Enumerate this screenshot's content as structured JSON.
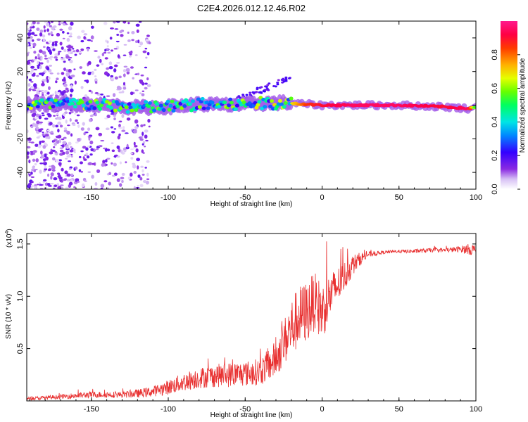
{
  "chart_data": [
    {
      "type": "heatmap",
      "title": "C2E4.2026.012.12.46.R02",
      "xlabel": "Height of straight line (km)",
      "ylabel": "Frequency (Hz)",
      "xlim": [
        -192,
        100
      ],
      "ylim": [
        -50,
        50
      ],
      "xticks": [
        -150,
        -100,
        -50,
        0,
        50,
        100
      ],
      "yticks": [
        -40,
        -20,
        0,
        20,
        40
      ],
      "colorbar": {
        "label": "Normalized spectral amplitude",
        "range": [
          0.0,
          1.0
        ],
        "ticks": [
          "0.0",
          "0.2",
          "0.4",
          "0.6",
          "0.8"
        ],
        "tick_values": [
          0.0,
          0.2,
          0.4,
          0.6,
          0.8
        ]
      },
      "ridge": {
        "description": "dominant frequency band centered near 0 Hz",
        "x": [
          -190,
          -150,
          -120,
          -100,
          -80,
          -60,
          -40,
          -25,
          -10,
          0,
          20,
          50,
          80,
          95,
          100
        ],
        "center_hz": [
          0.5,
          0.5,
          -1.5,
          -1.0,
          0.5,
          0.0,
          1.0,
          1.5,
          0.5,
          0.0,
          0.0,
          0.0,
          -1.0,
          -2.0,
          -1.5
        ],
        "amplitude": [
          0.5,
          0.45,
          0.4,
          0.4,
          0.45,
          0.45,
          0.5,
          0.6,
          0.85,
          0.9,
          0.95,
          0.95,
          0.9,
          0.95,
          0.5
        ]
      }
    },
    {
      "type": "line",
      "xlabel": "Height of straight line (km)",
      "ylabel": "SNR (10 * v/v)",
      "scale_label": "(x10",
      "scale_exponent": "4",
      "xlim": [
        -192,
        100
      ],
      "ylim": [
        0,
        1.6
      ],
      "xticks": [
        -150,
        -100,
        -50,
        0,
        50,
        100
      ],
      "yticks": [
        0.5,
        1.0,
        1.5
      ],
      "ytick_labels": [
        "0.5",
        "1.0",
        "1.5"
      ],
      "series": [
        {
          "name": "SNR",
          "color": "#e83030",
          "x": [
            -192,
            -180,
            -170,
            -160,
            -150,
            -140,
            -130,
            -120,
            -110,
            -100,
            -90,
            -80,
            -70,
            -60,
            -50,
            -40,
            -30,
            -25,
            -20,
            -15,
            -10,
            -5,
            0,
            5,
            10,
            15,
            20,
            25,
            30,
            40,
            50,
            60,
            70,
            80,
            90,
            95,
            100
          ],
          "y": [
            0.02,
            0.03,
            0.04,
            0.05,
            0.06,
            0.06,
            0.06,
            0.07,
            0.09,
            0.13,
            0.18,
            0.22,
            0.24,
            0.25,
            0.26,
            0.28,
            0.4,
            0.55,
            0.7,
            0.8,
            0.85,
            0.95,
            0.85,
            1.0,
            1.1,
            1.2,
            1.3,
            1.36,
            1.4,
            1.42,
            1.43,
            1.43,
            1.44,
            1.44,
            1.45,
            1.45,
            1.44
          ],
          "noise": [
            0.015,
            0.02,
            0.02,
            0.03,
            0.03,
            0.03,
            0.03,
            0.04,
            0.05,
            0.07,
            0.09,
            0.1,
            0.11,
            0.12,
            0.12,
            0.13,
            0.18,
            0.22,
            0.28,
            0.3,
            0.3,
            0.28,
            0.28,
            0.22,
            0.18,
            0.14,
            0.1,
            0.06,
            0.03,
            0.015,
            0.015,
            0.02,
            0.02,
            0.02,
            0.03,
            0.05,
            0.06
          ]
        }
      ]
    }
  ],
  "colors": {
    "line": "#e83030",
    "axis": "#000000"
  }
}
